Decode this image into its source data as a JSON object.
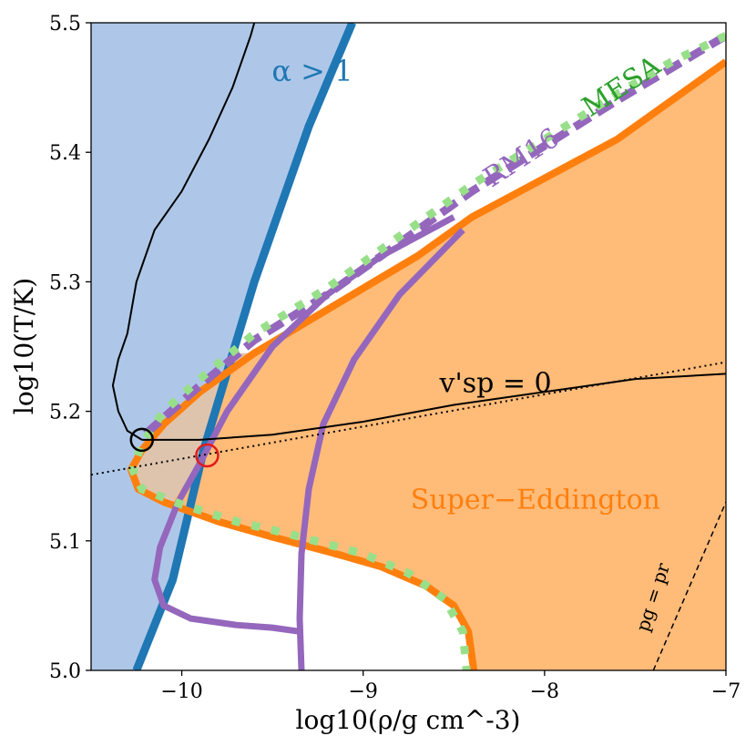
{
  "chart_data": {
    "type": "line",
    "xlabel": "log10(ρ/g cm^-3)",
    "ylabel": "log10(T/K)",
    "xlim": [
      -10.5,
      -7
    ],
    "ylim": [
      5.0,
      5.5
    ],
    "x_ticks": [
      {
        "value": -10,
        "label": "−10"
      },
      {
        "value": -9,
        "label": "−9"
      },
      {
        "value": -8,
        "label": "−8"
      },
      {
        "value": -7,
        "label": "−7"
      }
    ],
    "y_ticks": [
      {
        "value": 5.0,
        "label": "5.0"
      },
      {
        "value": 5.1,
        "label": "5.1"
      },
      {
        "value": 5.2,
        "label": "5.2"
      },
      {
        "value": 5.3,
        "label": "5.3"
      },
      {
        "value": 5.4,
        "label": "5.4"
      },
      {
        "value": 5.5,
        "label": "5.5"
      }
    ],
    "colors": {
      "alpha_fill": "#aec7e8",
      "alpha_line": "#1f77b4",
      "super_eddington_fill": "#ffbb78",
      "super_eddington_line": "#ff7f0e",
      "overlap_fill": "#dfc4ad",
      "rm16": "#9467bd",
      "mesa": "#98df8a",
      "black": "#000000",
      "red": "#e31a1c"
    },
    "regions": {
      "alpha_gt_1_boundary": [
        [
          -10.25,
          5.0
        ],
        [
          -10.05,
          5.07
        ],
        [
          -9.88,
          5.17
        ],
        [
          -9.6,
          5.3
        ],
        [
          -9.3,
          5.42
        ],
        [
          -9.06,
          5.5
        ]
      ],
      "super_eddington_boundary": [
        [
          -7.0,
          5.47
        ],
        [
          -7.2,
          5.45
        ],
        [
          -7.6,
          5.41
        ],
        [
          -8.0,
          5.38
        ],
        [
          -8.4,
          5.35
        ],
        [
          -8.7,
          5.32
        ],
        [
          -9.0,
          5.295
        ],
        [
          -9.3,
          5.27
        ],
        [
          -9.6,
          5.245
        ],
        [
          -9.9,
          5.215
        ],
        [
          -10.1,
          5.19
        ],
        [
          -10.22,
          5.17
        ],
        [
          -10.28,
          5.155
        ],
        [
          -10.24,
          5.14
        ],
        [
          -10.1,
          5.13
        ],
        [
          -9.8,
          5.115
        ],
        [
          -9.5,
          5.103
        ],
        [
          -9.2,
          5.092
        ],
        [
          -8.9,
          5.08
        ],
        [
          -8.65,
          5.065
        ],
        [
          -8.5,
          5.05
        ],
        [
          -8.42,
          5.03
        ],
        [
          -8.39,
          5.0
        ]
      ]
    },
    "series": [
      {
        "name": "MESA",
        "style": "dotted-thick",
        "points": [
          [
            -7.0,
            5.49
          ],
          [
            -7.3,
            5.47
          ],
          [
            -7.6,
            5.445
          ],
          [
            -8.0,
            5.41
          ],
          [
            -8.4,
            5.375
          ],
          [
            -8.8,
            5.335
          ],
          [
            -9.2,
            5.295
          ],
          [
            -9.6,
            5.26
          ],
          [
            -9.9,
            5.225
          ],
          [
            -10.1,
            5.2
          ],
          [
            -10.22,
            5.175
          ],
          [
            -10.27,
            5.155
          ],
          [
            -10.22,
            5.14
          ],
          [
            -10.0,
            5.128
          ],
          [
            -9.7,
            5.115
          ],
          [
            -9.4,
            5.105
          ],
          [
            -9.0,
            5.09
          ],
          [
            -8.75,
            5.075
          ],
          [
            -8.55,
            5.055
          ],
          [
            -8.45,
            5.03
          ],
          [
            -8.43,
            5.0
          ]
        ]
      },
      {
        "name": "RM16",
        "style": "dashed-thick",
        "points": [
          [
            -7.0,
            5.49
          ],
          [
            -7.3,
            5.465
          ],
          [
            -7.6,
            5.44
          ],
          [
            -8.0,
            5.405
          ],
          [
            -8.4,
            5.37
          ],
          [
            -8.8,
            5.33
          ],
          [
            -9.2,
            5.29
          ],
          [
            -9.6,
            5.255
          ],
          [
            -9.9,
            5.22
          ],
          [
            -10.1,
            5.195
          ],
          [
            -10.22,
            5.18
          ]
        ]
      },
      {
        "name": "RM16 branch A",
        "style": "solid-thick",
        "points": [
          [
            -8.5,
            5.35
          ],
          [
            -8.9,
            5.32
          ],
          [
            -9.2,
            5.29
          ],
          [
            -9.5,
            5.25
          ],
          [
            -9.75,
            5.2
          ],
          [
            -9.9,
            5.16
          ],
          [
            -10.02,
            5.13
          ],
          [
            -10.12,
            5.095
          ],
          [
            -10.15,
            5.07
          ],
          [
            -10.1,
            5.05
          ],
          [
            -9.95,
            5.04
          ],
          [
            -9.7,
            5.035
          ],
          [
            -9.5,
            5.033
          ],
          [
            -9.35,
            5.03
          ]
        ]
      },
      {
        "name": "RM16 branch B",
        "style": "solid-thick",
        "points": [
          [
            -8.45,
            5.34
          ],
          [
            -8.8,
            5.29
          ],
          [
            -9.05,
            5.24
          ],
          [
            -9.22,
            5.19
          ],
          [
            -9.3,
            5.14
          ],
          [
            -9.34,
            5.09
          ],
          [
            -9.35,
            5.04
          ],
          [
            -9.34,
            5.0
          ]
        ]
      },
      {
        "name": "v'sp = 0 (solid)",
        "style": "thin",
        "points": [
          [
            -10.22,
            5.178
          ],
          [
            -10.3,
            5.185
          ],
          [
            -10.35,
            5.2
          ],
          [
            -10.38,
            5.22
          ],
          [
            -10.35,
            5.24
          ],
          [
            -10.3,
            5.26
          ],
          [
            -10.25,
            5.3
          ],
          [
            -10.15,
            5.34
          ],
          [
            -10.0,
            5.37
          ],
          [
            -9.85,
            5.41
          ],
          [
            -9.72,
            5.45
          ],
          [
            -9.62,
            5.49
          ],
          [
            -9.6,
            5.5
          ]
        ]
      },
      {
        "name": "v'sp = 0 (horizontal)",
        "style": "thin",
        "points": [
          [
            -10.22,
            5.178
          ],
          [
            -9.9,
            5.178
          ],
          [
            -9.5,
            5.182
          ],
          [
            -9.0,
            5.192
          ],
          [
            -8.5,
            5.205
          ],
          [
            -8.0,
            5.215
          ],
          [
            -7.5,
            5.225
          ],
          [
            -7.0,
            5.229
          ]
        ]
      },
      {
        "name": "dotted reference",
        "style": "dotted-thin",
        "points": [
          [
            -10.5,
            5.151
          ],
          [
            -7.0,
            5.238
          ]
        ]
      },
      {
        "name": "pg = pr",
        "style": "dashed-thin",
        "points": [
          [
            -7.4,
            5.0
          ],
          [
            -7.0,
            5.13
          ]
        ]
      }
    ],
    "markers": [
      {
        "name": "black-circle",
        "x": -10.22,
        "y": 5.178,
        "color": "#000000"
      },
      {
        "name": "red-circle",
        "x": -9.86,
        "y": 5.166,
        "color": "#e31a1c"
      }
    ],
    "annotations": [
      {
        "text": "α > 1",
        "x": -9.28,
        "y": 5.455,
        "color": "#1f77b4",
        "size": 32,
        "rotate": 0
      },
      {
        "text": "RM16",
        "x": -8.1,
        "y": 5.39,
        "color": "#9467bd",
        "size": 30,
        "rotate": -33
      },
      {
        "text": "MESA",
        "x": -7.55,
        "y": 5.445,
        "color": "#2ca02c",
        "size": 30,
        "rotate": -33
      },
      {
        "text": "v'sp = 0",
        "x": -8.27,
        "y": 5.215,
        "color": "#000000",
        "size": 30,
        "rotate": 0
      },
      {
        "text": "Super−Eddington",
        "x": -8.05,
        "y": 5.125,
        "color": "#ff7f0e",
        "size": 30,
        "rotate": 0
      },
      {
        "text": "pg = pr",
        "x": -7.37,
        "y": 5.055,
        "color": "#000000",
        "size": 20,
        "rotate": -72
      }
    ]
  }
}
